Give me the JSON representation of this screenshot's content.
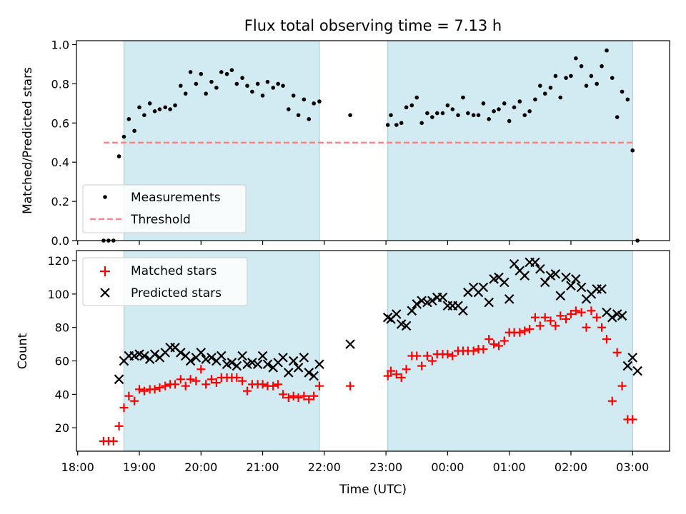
{
  "title": "Flux total observing time = 7.13 h",
  "chart_data": [
    {
      "type": "scatter",
      "ylabel": "Matched/Predicted stars",
      "xlabel": "",
      "ylim": [
        0.0,
        1.02
      ],
      "y_ticks": [
        "0.0",
        "0.2",
        "0.4",
        "0.6",
        "0.8",
        "1.0"
      ],
      "shaded_intervals_hours": [
        [
          18.75,
          21.92
        ],
        [
          23.03,
          27.0
        ]
      ],
      "shade_color": "#add8e6",
      "legend_position": "lower-left",
      "series": [
        {
          "name": "Measurements",
          "marker": "dot",
          "color": "#000000",
          "x": [
            18.42,
            18.5,
            18.58,
            18.67,
            18.75,
            18.83,
            18.92,
            19.0,
            19.08,
            19.17,
            19.25,
            19.33,
            19.42,
            19.5,
            19.58,
            19.67,
            19.75,
            19.83,
            19.92,
            20.0,
            20.08,
            20.17,
            20.25,
            20.33,
            20.42,
            20.5,
            20.58,
            20.67,
            20.75,
            20.83,
            20.92,
            21.0,
            21.08,
            21.17,
            21.25,
            21.33,
            21.42,
            21.5,
            21.58,
            21.67,
            21.75,
            21.83,
            21.92,
            22.42,
            23.03,
            23.08,
            23.17,
            23.25,
            23.33,
            23.42,
            23.5,
            23.58,
            23.67,
            23.75,
            23.83,
            23.92,
            24.0,
            24.08,
            24.17,
            24.25,
            24.33,
            24.42,
            24.5,
            24.58,
            24.67,
            24.75,
            24.83,
            24.92,
            25.0,
            25.08,
            25.17,
            25.25,
            25.33,
            25.42,
            25.5,
            25.58,
            25.67,
            25.75,
            25.83,
            25.92,
            26.0,
            26.08,
            26.17,
            26.25,
            26.33,
            26.42,
            26.5,
            26.58,
            26.67,
            26.75,
            26.83,
            26.92,
            27.0,
            27.08,
            27.17
          ],
          "y": [
            0.0,
            0.0,
            0.0,
            0.43,
            0.53,
            0.62,
            0.56,
            0.68,
            0.64,
            0.7,
            0.66,
            0.67,
            0.68,
            0.67,
            0.69,
            0.79,
            0.75,
            0.86,
            0.8,
            0.85,
            0.75,
            0.81,
            0.78,
            0.86,
            0.85,
            0.87,
            0.8,
            0.83,
            0.79,
            0.76,
            0.8,
            0.74,
            0.81,
            0.78,
            0.8,
            0.79,
            0.67,
            0.74,
            0.64,
            0.72,
            0.62,
            0.7,
            0.71,
            0.64,
            0.59,
            0.64,
            0.59,
            0.6,
            0.68,
            0.69,
            0.73,
            0.6,
            0.65,
            0.63,
            0.65,
            0.65,
            0.69,
            0.67,
            0.64,
            0.73,
            0.65,
            0.64,
            0.64,
            0.7,
            0.62,
            0.66,
            0.67,
            0.7,
            0.61,
            0.68,
            0.71,
            0.64,
            0.66,
            0.72,
            0.79,
            0.75,
            0.78,
            0.84,
            0.73,
            0.83,
            0.84,
            0.93,
            0.89,
            0.79,
            0.84,
            0.8,
            0.89,
            0.97,
            0.83,
            0.63,
            0.76,
            0.72,
            0.46,
            0.0,
            null
          ]
        },
        {
          "name": "Threshold",
          "style": "dashed-line",
          "color": "#ff7f7f",
          "x": [
            18.42,
            27.0
          ],
          "y": [
            0.5,
            0.5
          ]
        }
      ]
    },
    {
      "type": "scatter",
      "ylabel": "Count",
      "xlabel": "Time (UTC)",
      "ylim": [
        6,
        126
      ],
      "y_ticks": [
        "20",
        "40",
        "60",
        "80",
        "100",
        "120"
      ],
      "x_ticks": [
        "18:00",
        "19:00",
        "20:00",
        "21:00",
        "22:00",
        "23:00",
        "00:00",
        "01:00",
        "02:00",
        "03:00"
      ],
      "xlim_hours": [
        17.98,
        27.6
      ],
      "shaded_intervals_hours": [
        [
          18.75,
          21.92
        ],
        [
          23.03,
          27.0
        ]
      ],
      "shade_color": "#add8e6",
      "legend_position": "upper-left",
      "series": [
        {
          "name": "Matched stars",
          "marker": "plus",
          "color": "#ff0000",
          "x": [
            18.42,
            18.5,
            18.58,
            18.67,
            18.75,
            18.83,
            18.92,
            19.0,
            19.08,
            19.17,
            19.25,
            19.33,
            19.42,
            19.5,
            19.58,
            19.67,
            19.75,
            19.83,
            19.92,
            20.0,
            20.08,
            20.17,
            20.25,
            20.33,
            20.42,
            20.5,
            20.58,
            20.67,
            20.75,
            20.83,
            20.92,
            21.0,
            21.08,
            21.17,
            21.25,
            21.33,
            21.42,
            21.5,
            21.58,
            21.67,
            21.75,
            21.83,
            21.92,
            22.42,
            23.03,
            23.08,
            23.17,
            23.25,
            23.33,
            23.42,
            23.5,
            23.58,
            23.67,
            23.75,
            23.83,
            23.92,
            24.0,
            24.08,
            24.17,
            24.25,
            24.33,
            24.42,
            24.5,
            24.58,
            24.67,
            24.75,
            24.83,
            24.92,
            25.0,
            25.08,
            25.17,
            25.25,
            25.33,
            25.42,
            25.5,
            25.58,
            25.67,
            25.75,
            25.83,
            25.92,
            26.0,
            26.08,
            26.17,
            26.25,
            26.33,
            26.42,
            26.5,
            26.58,
            26.67,
            26.75,
            26.83,
            26.92,
            27.0,
            27.08,
            27.17
          ],
          "y": [
            12,
            12,
            12,
            21,
            32,
            39,
            36,
            43,
            42,
            43,
            43,
            44,
            45,
            46,
            46,
            49,
            45,
            49,
            48,
            55,
            46,
            49,
            47,
            50,
            50,
            50,
            50,
            48,
            42,
            46,
            46,
            46,
            45,
            45,
            46,
            40,
            38,
            39,
            38,
            39,
            37,
            39,
            45,
            45,
            51,
            54,
            52,
            50,
            55,
            63,
            63,
            57,
            63,
            60,
            64,
            64,
            64,
            63,
            66,
            66,
            66,
            66,
            67,
            67,
            73,
            70,
            69,
            72,
            77,
            77,
            77,
            78,
            79,
            86,
            81,
            86,
            84,
            81,
            87,
            85,
            88,
            90,
            89,
            80,
            90,
            86,
            80,
            73,
            36,
            65,
            45,
            25,
            25,
            null,
            null
          ]
        },
        {
          "name": "Predicted stars",
          "marker": "x",
          "color": "#000000",
          "x": [
            18.67,
            18.75,
            18.83,
            18.92,
            19.0,
            19.08,
            19.17,
            19.25,
            19.33,
            19.42,
            19.5,
            19.58,
            19.67,
            19.75,
            19.83,
            19.92,
            20.0,
            20.08,
            20.17,
            20.25,
            20.33,
            20.42,
            20.5,
            20.58,
            20.67,
            20.75,
            20.83,
            20.92,
            21.0,
            21.08,
            21.17,
            21.25,
            21.33,
            21.42,
            21.5,
            21.58,
            21.67,
            21.75,
            21.83,
            21.92,
            22.42,
            23.03,
            23.08,
            23.17,
            23.25,
            23.33,
            23.42,
            23.5,
            23.58,
            23.67,
            23.75,
            23.83,
            23.92,
            24.0,
            24.08,
            24.17,
            24.25,
            24.33,
            24.42,
            24.5,
            24.58,
            24.67,
            24.75,
            24.83,
            24.92,
            25.0,
            25.08,
            25.17,
            25.25,
            25.33,
            25.42,
            25.5,
            25.58,
            25.67,
            25.75,
            25.83,
            25.92,
            26.0,
            26.08,
            26.17,
            26.25,
            26.33,
            26.42,
            26.5,
            26.58,
            26.67,
            26.75,
            26.83,
            26.92,
            27.0,
            27.08,
            27.17
          ],
          "y": [
            49,
            60,
            63,
            63,
            64,
            63,
            61,
            64,
            62,
            65,
            68,
            68,
            65,
            63,
            60,
            62,
            65,
            61,
            62,
            60,
            63,
            58,
            59,
            57,
            63,
            58,
            59,
            58,
            63,
            58,
            56,
            59,
            62,
            53,
            60,
            56,
            62,
            53,
            51,
            58,
            70,
            86,
            85,
            88,
            82,
            81,
            90,
            94,
            96,
            95,
            96,
            98,
            98,
            93,
            93,
            93,
            90,
            101,
            104,
            101,
            104,
            95,
            109,
            110,
            107,
            97,
            118,
            114,
            111,
            119,
            119,
            115,
            107,
            111,
            112,
            99,
            110,
            105,
            109,
            104,
            97,
            100,
            103,
            103,
            89,
            86,
            88,
            87,
            57,
            62,
            54,
            null
          ]
        }
      ]
    }
  ]
}
